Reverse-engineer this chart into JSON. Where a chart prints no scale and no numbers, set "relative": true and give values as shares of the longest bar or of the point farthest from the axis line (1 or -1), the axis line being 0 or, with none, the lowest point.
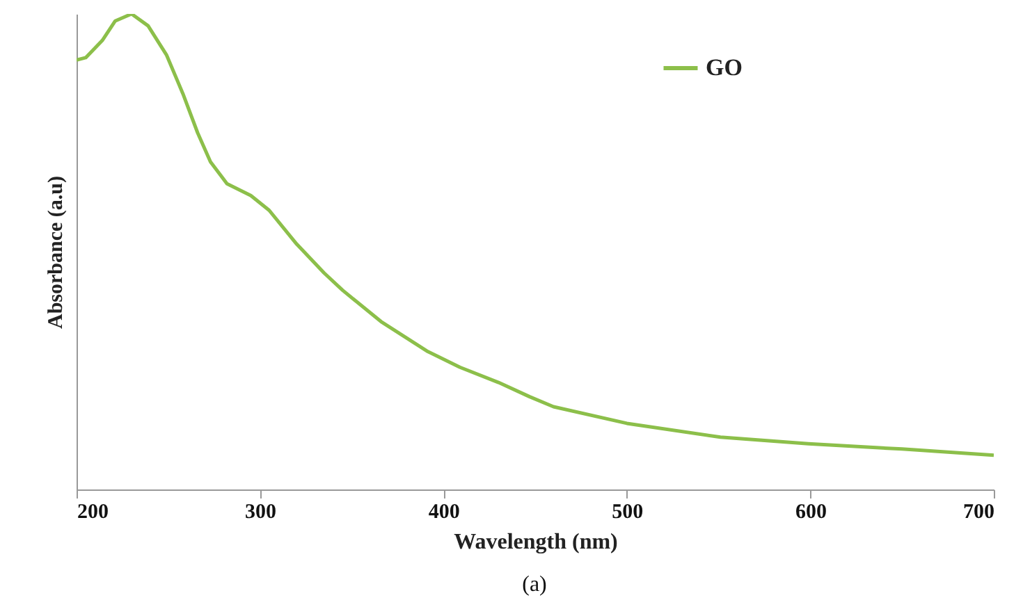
{
  "chart_data": {
    "type": "line",
    "relative": true,
    "xlabel": "Wavelength (nm)",
    "ylabel": "Absorbance (a.u)",
    "xlim": [
      200,
      700
    ],
    "xticks": [
      200,
      300,
      400,
      500,
      600,
      700
    ],
    "grid": false,
    "legend": "top right",
    "annotations": [
      "(a)"
    ],
    "series": [
      {
        "name": "GO",
        "color": "#8cbf4a",
        "x": [
          200,
          205,
          214,
          221,
          230,
          239,
          249,
          258,
          266,
          273,
          282,
          295,
          305,
          320,
          335,
          345,
          366,
          391,
          409,
          430,
          447,
          460,
          500,
          551,
          599,
          650,
          700
        ],
        "values": [
          0.903,
          0.908,
          0.944,
          0.985,
          1,
          0.975,
          0.914,
          0.832,
          0.75,
          0.689,
          0.643,
          0.618,
          0.587,
          0.516,
          0.455,
          0.419,
          0.353,
          0.291,
          0.257,
          0.225,
          0.195,
          0.174,
          0.139,
          0.11,
          0.096,
          0.085,
          0.072
        ]
      }
    ]
  }
}
